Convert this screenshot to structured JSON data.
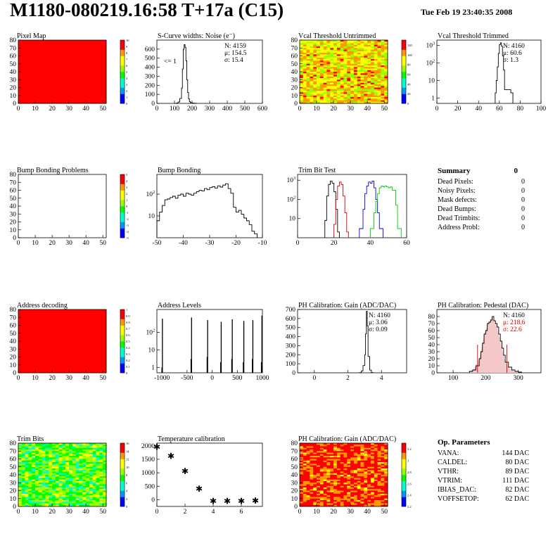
{
  "header": {
    "title": "M1180-080219.16:58 T+17a (C15)",
    "date": "Tue Feb 19 23:40:35 2008"
  },
  "chart_data": [
    {
      "type": "heatmap",
      "title": "Pixel Map",
      "xlim": [
        0,
        52
      ],
      "ylim": [
        0,
        80
      ],
      "xticks": [
        0,
        10,
        20,
        30,
        40,
        50
      ],
      "yticks": [
        0,
        10,
        20,
        30,
        40,
        50,
        60,
        70,
        80
      ],
      "colorbar": {
        "min": 0,
        "max": 10,
        "ticks": [
          0,
          1,
          2,
          3,
          4,
          5,
          6,
          7,
          8,
          9,
          10
        ]
      },
      "fill_level": 1.0
    },
    {
      "type": "line",
      "title": "S-Curve widths: Noise (e⁻)",
      "xlim": [
        0,
        600
      ],
      "ylim": [
        0,
        700
      ],
      "xticks": [
        0,
        100,
        200,
        300,
        400,
        500,
        600
      ],
      "yticks": [
        0,
        100,
        200,
        300,
        400,
        500,
        600
      ],
      "stats": {
        "N": "4159",
        "mu": "154.5",
        "sigma": "15.4"
      },
      "annotation": "<= 1",
      "x": [
        100,
        110,
        120,
        130,
        140,
        145,
        150,
        155,
        160,
        165,
        170,
        175,
        180,
        185,
        190,
        200,
        210,
        220
      ],
      "values": [
        0,
        2,
        15,
        55,
        170,
        380,
        600,
        650,
        620,
        470,
        260,
        120,
        50,
        20,
        8,
        3,
        1,
        0
      ]
    },
    {
      "type": "heatmap",
      "title": "Vcal Threshold Untrimmed",
      "xlim": [
        0,
        52
      ],
      "ylim": [
        0,
        80
      ],
      "xticks": [
        0,
        10,
        20,
        30,
        40,
        50
      ],
      "yticks": [
        0,
        10,
        20,
        30,
        40,
        50,
        60,
        70,
        80
      ],
      "colorbar": {
        "min": 0,
        "max": 130,
        "ticks": [
          0,
          20,
          40,
          60,
          80,
          100,
          120
        ]
      },
      "fill_level": 0.72
    },
    {
      "type": "line",
      "title": "Vcal Threshold Trimmed",
      "log_y": true,
      "xlim": [
        0,
        100
      ],
      "ylim": [
        0.5,
        2000
      ],
      "xticks": [
        0,
        20,
        40,
        60,
        80,
        100
      ],
      "yticks": [
        1,
        10,
        100,
        1000
      ],
      "stats": {
        "N": "4160",
        "mu": "60.6",
        "sigma": "1.3"
      },
      "x": [
        56,
        57,
        58,
        59,
        60,
        61,
        62,
        63,
        64,
        65,
        71,
        72
      ],
      "values": [
        2,
        10,
        60,
        350,
        1100,
        1400,
        900,
        250,
        40,
        3,
        2,
        2
      ]
    },
    {
      "type": "heatmap",
      "title": "Bump Bonding Problems",
      "xlim": [
        0,
        52
      ],
      "ylim": [
        0,
        80
      ],
      "xticks": [
        0,
        10,
        20,
        30,
        40,
        50
      ],
      "yticks": [
        0,
        10,
        20,
        30,
        40,
        50,
        60,
        70,
        80
      ],
      "colorbar": {
        "min": -5,
        "max": 5,
        "ticks": [
          -5,
          -4,
          -3,
          -2,
          -1,
          0,
          1,
          2,
          3,
          4,
          5
        ]
      },
      "fill_level": null
    },
    {
      "type": "line",
      "title": "Bump Bonding",
      "log_y": true,
      "xlim": [
        -50,
        -10
      ],
      "ylim": [
        1,
        800
      ],
      "xticks": [
        -50,
        -40,
        -30,
        -20,
        -10
      ],
      "yticks": [
        10,
        100
      ],
      "x": [
        -50,
        -49,
        -48,
        -47,
        -46,
        -45,
        -44,
        -43,
        -42,
        -41,
        -40,
        -39,
        -38,
        -37,
        -36,
        -35,
        -34,
        -33,
        -32,
        -31,
        -30,
        -29,
        -28,
        -27,
        -26,
        -25,
        -24,
        -23,
        -22,
        -21,
        -20,
        -19,
        -18,
        -17,
        -16,
        -15,
        -14,
        -13
      ],
      "values": [
        6,
        15,
        30,
        55,
        60,
        70,
        80,
        65,
        90,
        100,
        80,
        110,
        100,
        90,
        110,
        130,
        150,
        140,
        180,
        160,
        200,
        220,
        190,
        240,
        210,
        260,
        300,
        180,
        110,
        25,
        15,
        18,
        12,
        8,
        6,
        4,
        2,
        1.5
      ]
    },
    {
      "type": "line",
      "title": "Trim Bit Test",
      "log_y": true,
      "xlim": [
        0,
        60
      ],
      "ylim": [
        1,
        2000
      ],
      "xticks": [
        0,
        20,
        40,
        60
      ],
      "yticks": [
        10,
        100,
        1000
      ],
      "series": [
        {
          "color": "#000000",
          "x": [
            15,
            16,
            17,
            18,
            19,
            20,
            21,
            22
          ],
          "values": [
            8,
            150,
            600,
            900,
            700,
            250,
            30,
            2
          ]
        },
        {
          "color": "#d00000",
          "x": [
            20,
            21,
            22,
            23,
            24,
            25,
            26,
            27
          ],
          "values": [
            5,
            100,
            500,
            800,
            600,
            150,
            20,
            2
          ]
        },
        {
          "color": "#0000dd",
          "x": [
            34,
            36,
            37,
            38,
            39,
            40,
            41,
            42,
            43,
            44,
            45
          ],
          "values": [
            3,
            30,
            200,
            500,
            800,
            700,
            900,
            400,
            100,
            20,
            3
          ]
        },
        {
          "color": "#00cc00",
          "x": [
            40,
            42,
            43,
            44,
            45,
            46,
            47,
            48,
            49,
            50,
            51,
            52,
            54,
            55
          ],
          "values": [
            3,
            20,
            80,
            200,
            400,
            500,
            450,
            500,
            450,
            400,
            450,
            300,
            50,
            3
          ]
        }
      ]
    },
    {
      "type": "heatmap",
      "title": "Address decoding",
      "xlim": [
        0,
        52
      ],
      "ylim": [
        0,
        80
      ],
      "xticks": [
        0,
        10,
        20,
        30,
        40,
        50
      ],
      "yticks": [
        0,
        10,
        20,
        30,
        40,
        50,
        60,
        70,
        80
      ],
      "colorbar": {
        "min": 0,
        "max": 1,
        "ticks": [
          0,
          0.1,
          0.2,
          0.3,
          0.4,
          0.5,
          0.6,
          0.7,
          0.8,
          0.9,
          1
        ]
      },
      "fill_level": 1.0
    },
    {
      "type": "bar",
      "title": "Address Levels",
      "log_y": true,
      "xlim": [
        -1100,
        1000
      ],
      "ylim": [
        0.5,
        2000
      ],
      "xticks": [
        -1000,
        -500,
        0,
        500,
        1000
      ],
      "yticks": [
        1,
        10,
        100
      ],
      "x": [
        -1000,
        -990,
        -420,
        -410,
        -100,
        -90,
        170,
        180,
        390,
        400,
        620,
        630,
        800,
        810,
        980,
        990
      ],
      "values": [
        1,
        600,
        3,
        700,
        4,
        500,
        2,
        400,
        3,
        550,
        2,
        450,
        3,
        500,
        2,
        900
      ]
    },
    {
      "type": "line",
      "title": "PH Calibration: Gain (ADC/DAC)",
      "xlim": [
        -1,
        5.5
      ],
      "ylim": [
        0,
        700
      ],
      "xticks": [
        0,
        2,
        4
      ],
      "yticks": [
        0,
        100,
        200,
        300,
        400,
        500,
        600,
        700
      ],
      "stats": {
        "N": "4160",
        "mu": "3.06",
        "sigma": "0.09"
      },
      "x": [
        2.7,
        2.8,
        2.9,
        3.0,
        3.05,
        3.1,
        3.15,
        3.2,
        3.3,
        3.4
      ],
      "values": [
        2,
        20,
        80,
        200,
        430,
        680,
        520,
        180,
        30,
        2
      ]
    },
    {
      "type": "histogram",
      "title": "PH Calibration: Pedestal (DAC)",
      "xlim": [
        50,
        370
      ],
      "ylim": [
        0,
        90
      ],
      "xticks": [
        100,
        200,
        300
      ],
      "yticks": [
        0,
        10,
        20,
        30,
        40,
        50,
        60,
        70,
        80
      ],
      "stats": {
        "N": "4160",
        "mu": "218.6",
        "sigma": "22.6"
      },
      "cut_lines": [
        175,
        265
      ],
      "x": [
        150,
        160,
        170,
        180,
        185,
        190,
        195,
        200,
        205,
        210,
        215,
        220,
        225,
        230,
        235,
        240,
        245,
        250,
        255,
        260,
        270,
        280,
        290,
        300
      ],
      "values": [
        2,
        4,
        10,
        20,
        30,
        42,
        55,
        60,
        70,
        72,
        75,
        80,
        74,
        70,
        65,
        55,
        45,
        35,
        25,
        15,
        8,
        4,
        2,
        1
      ]
    },
    {
      "type": "heatmap",
      "title": "Trim Bits",
      "xlim": [
        0,
        52
      ],
      "ylim": [
        0,
        80
      ],
      "xticks": [
        0,
        10,
        20,
        30,
        40,
        50
      ],
      "yticks": [
        0,
        10,
        20,
        30,
        40,
        50,
        60,
        70,
        80
      ],
      "colorbar": {
        "min": 0,
        "max": 16,
        "ticks": [
          0,
          2,
          4,
          6,
          8,
          10,
          12,
          14,
          16
        ]
      },
      "fill_level": 0.5
    },
    {
      "type": "scatter",
      "title": "Temperature calibration",
      "xlim": [
        0,
        7.5
      ],
      "ylim": [
        -250,
        2100
      ],
      "xticks": [
        0,
        2,
        4,
        6
      ],
      "yticks": [
        0,
        500,
        1000,
        1500,
        2000
      ],
      "x": [
        0,
        1,
        2,
        3,
        4,
        5,
        6,
        7
      ],
      "values": [
        1950,
        1620,
        1050,
        400,
        -50,
        -60,
        -60,
        -40
      ]
    },
    {
      "type": "heatmap",
      "title": "PH Calibration: Gain (ADC/DAC)",
      "xlim": [
        0,
        52
      ],
      "ylim": [
        0,
        80
      ],
      "xticks": [
        0,
        10,
        20,
        30,
        40,
        50
      ],
      "yticks": [
        0,
        10,
        20,
        30,
        40,
        50,
        60,
        70,
        80
      ],
      "colorbar": {
        "min": 2.2,
        "max": 3.3,
        "ticks": [
          2.2,
          2.4,
          2.6,
          2.8,
          3,
          3.2
        ]
      },
      "fill_level": 0.9
    }
  ],
  "summary": {
    "title": "Summary",
    "total": "0",
    "rows": [
      {
        "label": "Dead Pixels:",
        "value": "0"
      },
      {
        "label": "Noisy Pixels:",
        "value": "0"
      },
      {
        "label": "Mask defects:",
        "value": "0"
      },
      {
        "label": "Dead Bumps:",
        "value": "0"
      },
      {
        "label": "Dead Trimbits:",
        "value": "0"
      },
      {
        "label": "Address Probl:",
        "value": "0"
      }
    ]
  },
  "op_params": {
    "title": "Op. Parameters",
    "rows": [
      {
        "label": "VANA:",
        "value": "144 DAC"
      },
      {
        "label": "CALDEL:",
        "value": "80 DAC"
      },
      {
        "label": "VTHR:",
        "value": "89 DAC"
      },
      {
        "label": "VTRIM:",
        "value": "111 DAC"
      },
      {
        "label": "IBIAS_DAC:",
        "value": "82 DAC"
      },
      {
        "label": "VOFFSETOP:",
        "value": "62 DAC"
      }
    ]
  },
  "colors": {
    "pixel_full": "#ff0000",
    "frame": "#000000",
    "fill_pattern": "#d00000"
  }
}
